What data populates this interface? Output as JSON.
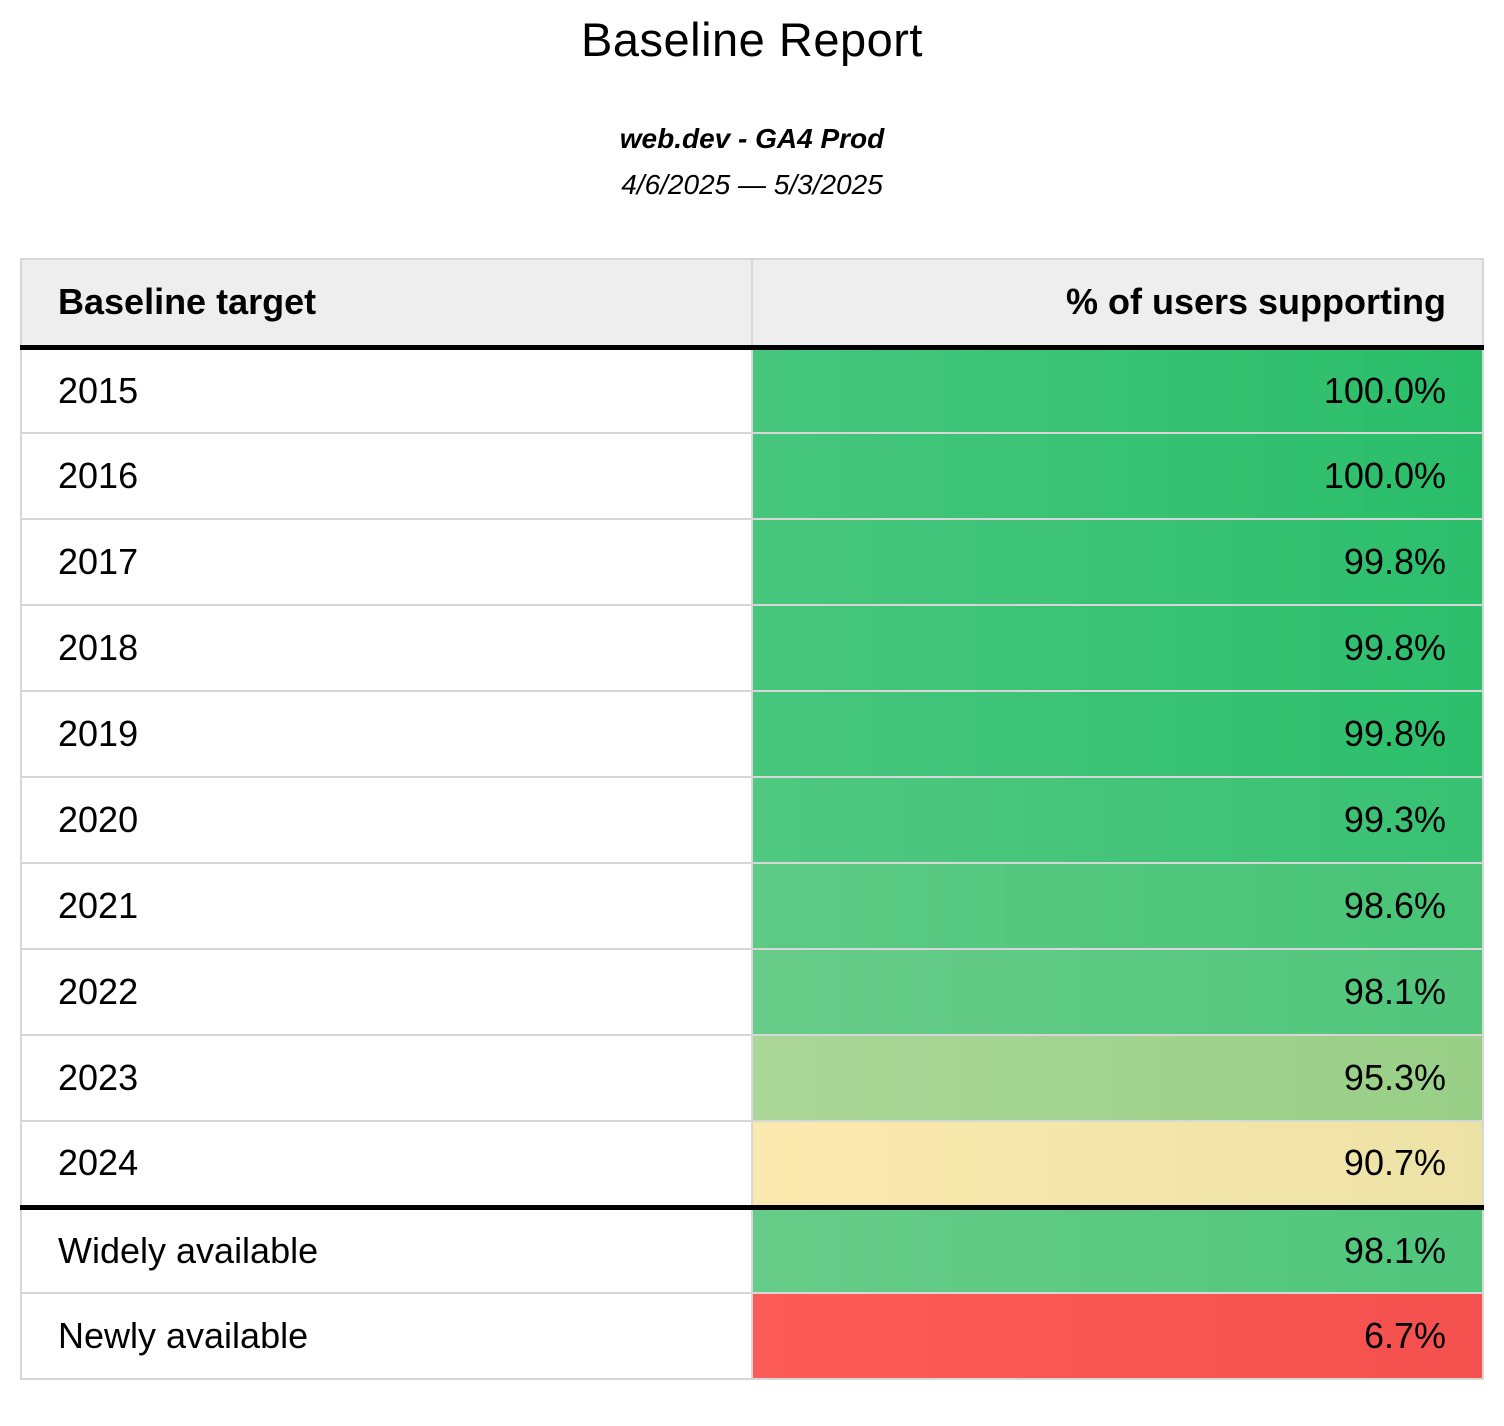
{
  "report": {
    "title": "Baseline Report",
    "subtitle": "web.dev - GA4 Prod",
    "date_range": "4/6/2025 — 5/3/2025"
  },
  "table": {
    "header": {
      "target_label": "Baseline target",
      "value_label": "% of users supporting"
    },
    "rows": [
      {
        "target": "2015",
        "value": "100.0%",
        "color_left": "#46c67d",
        "color_right": "#2abe6a"
      },
      {
        "target": "2016",
        "value": "100.0%",
        "color_left": "#46c67d",
        "color_right": "#2abe6a"
      },
      {
        "target": "2017",
        "value": "99.8%",
        "color_left": "#47c67d",
        "color_right": "#2cbf6c"
      },
      {
        "target": "2018",
        "value": "99.8%",
        "color_left": "#47c67d",
        "color_right": "#2cbf6c"
      },
      {
        "target": "2019",
        "value": "99.8%",
        "color_left": "#47c67d",
        "color_right": "#2cbf6c"
      },
      {
        "target": "2020",
        "value": "99.3%",
        "color_left": "#50c881",
        "color_right": "#38c172"
      },
      {
        "target": "2021",
        "value": "98.6%",
        "color_left": "#5dca85",
        "color_right": "#47c476"
      },
      {
        "target": "2022",
        "value": "98.1%",
        "color_left": "#67cc89",
        "color_right": "#50c67b"
      },
      {
        "target": "2023",
        "value": "95.3%",
        "color_left": "#aad697",
        "color_right": "#99cf87"
      },
      {
        "target": "2024",
        "value": "90.7%",
        "color_left": "#fbeaaf",
        "color_right": "#ede2a6"
      },
      {
        "target": "Widely available",
        "value": "98.1%",
        "color_left": "#67cc89",
        "color_right": "#50c67b"
      },
      {
        "target": "Newly available",
        "value": "6.7%",
        "color_left": "#fd5b57",
        "color_right": "#f4514e"
      }
    ]
  },
  "colors": {
    "header_bg": "#eeeeee",
    "grid_border": "#d7d7d7",
    "section_divider": "#000000",
    "text": "#000000",
    "green_full": "#2abe6a",
    "yellow_mid": "#ede2a6",
    "red_low": "#f4514e"
  },
  "chart_data": {
    "type": "table",
    "title": "Baseline Report",
    "subtitle": "web.dev - GA4 Prod",
    "date_range": "4/6/2025 — 5/3/2025",
    "columns": [
      "Baseline target",
      "% of users supporting"
    ],
    "categories": [
      "2015",
      "2016",
      "2017",
      "2018",
      "2019",
      "2020",
      "2021",
      "2022",
      "2023",
      "2024",
      "Widely available",
      "Newly available"
    ],
    "values": [
      100.0,
      100.0,
      99.8,
      99.8,
      99.8,
      99.3,
      98.6,
      98.1,
      95.3,
      90.7,
      98.1,
      6.7
    ],
    "value_unit": "%",
    "layout_hints": "value column uses red-yellow-green conditional formatting; thick black rules below header and below 2024 row separating yearly targets from summary rows"
  }
}
